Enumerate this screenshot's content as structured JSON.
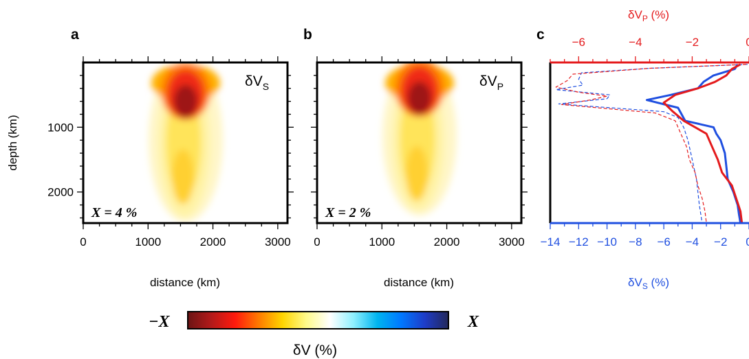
{
  "colors": {
    "vs_line": "#1f4fe0",
    "vp_line": "#e41a1c",
    "colorbar": [
      "#6b1414",
      "#b31a1a",
      "#ff1a0d",
      "#ff7b00",
      "#ffd500",
      "#fffa8a",
      "#ffffff",
      "#8ef0ff",
      "#00b4f0",
      "#0078ff",
      "#1e3cc8",
      "#23285a"
    ]
  },
  "chart_data": [
    {
      "type": "heatmap",
      "panel_label": "a",
      "quantity_label": "δV",
      "quantity_subscript": "S",
      "annotation": "X = 4 %",
      "xlabel": "distance (km)",
      "ylabel": "depth (km)",
      "xlim": [
        0,
        3150
      ],
      "ylim": [
        2480,
        0
      ],
      "xticks": [
        "0",
        "1000",
        "2000",
        "3000"
      ],
      "yticks": [
        "1000",
        "2000"
      ],
      "anomaly": {
        "center_x": 1580,
        "center_depth": 600,
        "plume_base_depth": 2400,
        "peak_percent": -4
      }
    },
    {
      "type": "heatmap",
      "panel_label": "b",
      "quantity_label": "δV",
      "quantity_subscript": "P",
      "annotation": "X = 2 %",
      "xlabel": "distance (km)",
      "xlim": [
        0,
        3150
      ],
      "ylim": [
        2480,
        0
      ],
      "xticks": [
        "0",
        "1000",
        "2000",
        "3000"
      ],
      "anomaly": {
        "center_x": 1580,
        "center_depth": 550,
        "plume_base_depth": 2300,
        "peak_percent": -2
      }
    },
    {
      "type": "line",
      "panel_label": "c",
      "top_axis": {
        "label": "δV",
        "subscript": "P",
        "unit": " (%)",
        "range": [
          -7,
          0
        ],
        "ticks": [
          "−6",
          "−4",
          "−2",
          "0"
        ]
      },
      "bottom_axis": {
        "label": "δV",
        "subscript": "S",
        "unit": " (%)",
        "range": [
          -14,
          0
        ],
        "ticks": [
          "−14",
          "−12",
          "−10",
          "−8",
          "−6",
          "−4",
          "−2",
          "0"
        ]
      },
      "ylim": [
        2480,
        0
      ],
      "series": [
        {
          "axis": "bottom",
          "style": "solid",
          "color": "#1f4fe0",
          "depth": [
            30,
            100,
            200,
            300,
            400,
            500,
            580,
            700,
            900,
            1000,
            1100,
            1200,
            1400,
            1600,
            1800,
            2000,
            2200,
            2350,
            2480
          ],
          "values": [
            -0.8,
            -1.0,
            -2.5,
            -3.2,
            -3.6,
            -5.5,
            -7.2,
            -5.0,
            -4.5,
            -2.5,
            -2.3,
            -2.0,
            -1.7,
            -1.6,
            -1.5,
            -1.1,
            -0.8,
            -0.7,
            -0.6
          ]
        },
        {
          "axis": "top",
          "style": "solid",
          "color": "#e41a1c",
          "depth": [
            30,
            100,
            200,
            300,
            400,
            500,
            620,
            750,
            900,
            1100,
            1300,
            1500,
            1700,
            1900,
            2100,
            2300,
            2480
          ],
          "values": [
            -0.3,
            -0.6,
            -0.8,
            -1.2,
            -1.8,
            -2.6,
            -3.0,
            -2.7,
            -2.3,
            -1.5,
            -1.3,
            -1.1,
            -0.95,
            -0.6,
            -0.45,
            -0.3,
            -0.25
          ]
        },
        {
          "axis": "bottom",
          "style": "dashed",
          "color": "#1f4fe0",
          "depth": [
            30,
            90,
            160,
            260,
            350,
            420,
            500,
            560,
            640,
            760,
            850,
            1000,
            1200,
            1400,
            1600,
            1800,
            2000,
            2200,
            2480
          ],
          "values": [
            -0.1,
            -7.0,
            -11.8,
            -12.0,
            -11.7,
            -13.6,
            -9.8,
            -10.0,
            -13.4,
            -6.0,
            -5.0,
            -4.6,
            -4.3,
            -4.1,
            -3.9,
            -3.7,
            -3.6,
            -3.5,
            -3.3
          ]
        },
        {
          "axis": "top",
          "style": "dashed",
          "color": "#e41a1c",
          "depth": [
            30,
            90,
            180,
            280,
            380,
            460,
            520,
            580,
            650,
            780,
            900,
            1100,
            1300,
            1500,
            1700,
            1900,
            2100,
            2300,
            2480
          ],
          "values": [
            -0.1,
            -3.5,
            -6.2,
            -6.4,
            -6.8,
            -6.0,
            -5.0,
            -5.6,
            -6.6,
            -3.3,
            -2.6,
            -2.4,
            -2.2,
            -2.1,
            -1.9,
            -1.8,
            -1.65,
            -1.55,
            -1.5
          ]
        }
      ]
    },
    {
      "type": "colorbar",
      "left_label": "−X",
      "right_label": "X",
      "title": "δV (%)"
    }
  ]
}
